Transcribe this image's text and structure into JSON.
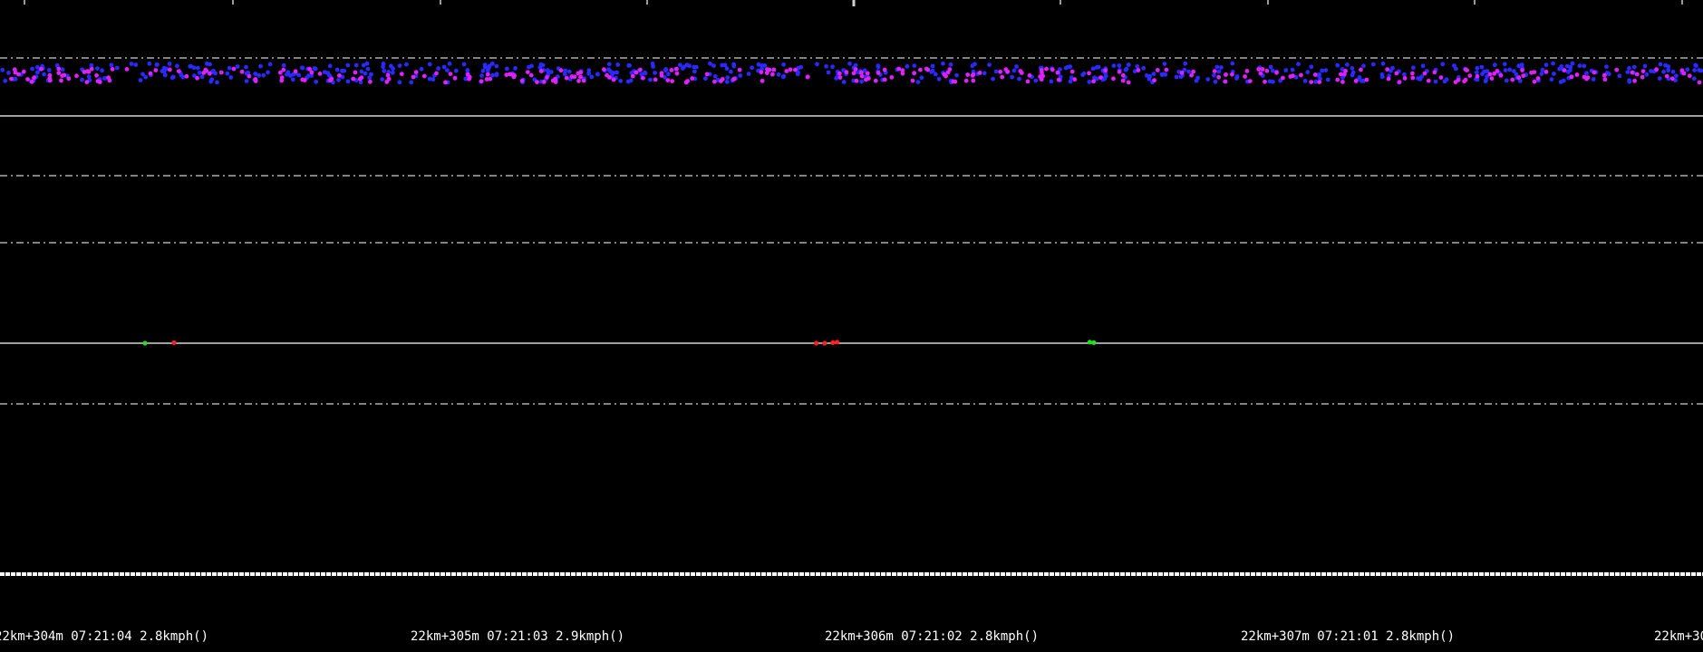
{
  "colors": {
    "background": "#000000",
    "grid": "#cfcfcf",
    "baseline": "#ffffff",
    "series_blue": "#2a2aff",
    "series_magenta": "#e020ff",
    "series_red": "#ff2020",
    "series_green": "#20e020",
    "label": "#ffffff"
  },
  "mileage_labels": [
    "22km+304m 07:21:04 2.8kmph()",
    "22km+305m 07:21:03 2.9kmph()",
    "22km+306m 07:21:02 2.8kmph()",
    "22km+307m 07:21:01 2.8kmph()",
    "22km+30"
  ],
  "chart_data": {
    "type": "scatter",
    "x_axis": "mileage (m offset within 22km)",
    "xlim": [
      303.99,
      308.1
    ],
    "grid": true,
    "legend": "none",
    "lanes": [
      {
        "id": "top-lane",
        "y_center": 0,
        "series": [
          {
            "color": "blue",
            "distribution": "dense band",
            "x_range": [
              303.99,
              308.1
            ],
            "y_spread": [
              -1.5,
              2.0
            ],
            "count": 560
          },
          {
            "color": "magenta",
            "distribution": "dense band",
            "x_range": [
              303.99,
              308.1
            ],
            "y_spread": [
              -1.5,
              1.0
            ],
            "count": 300
          }
        ]
      },
      {
        "id": "lower-lane",
        "y_center": 0,
        "series": [
          {
            "color": "green",
            "points": [
              [
                304.34,
                0.0
              ],
              [
                306.62,
                0.2
              ],
              [
                306.63,
                0.1
              ]
            ]
          },
          {
            "color": "red",
            "points": [
              [
                304.41,
                0.1
              ],
              [
                305.96,
                0.0
              ],
              [
                305.98,
                0.0
              ],
              [
                306.0,
                0.1
              ],
              [
                306.01,
                0.2
              ]
            ]
          }
        ]
      }
    ]
  }
}
